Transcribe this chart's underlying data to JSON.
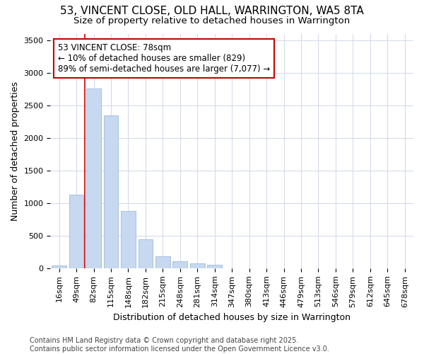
{
  "title_line1": "53, VINCENT CLOSE, OLD HALL, WARRINGTON, WA5 8TA",
  "title_line2": "Size of property relative to detached houses in Warrington",
  "xlabel": "Distribution of detached houses by size in Warrington",
  "ylabel": "Number of detached properties",
  "categories": [
    "16sqm",
    "49sqm",
    "82sqm",
    "115sqm",
    "148sqm",
    "182sqm",
    "215sqm",
    "248sqm",
    "281sqm",
    "314sqm",
    "347sqm",
    "380sqm",
    "413sqm",
    "446sqm",
    "479sqm",
    "513sqm",
    "546sqm",
    "579sqm",
    "612sqm",
    "645sqm",
    "678sqm"
  ],
  "values": [
    45,
    1130,
    2760,
    2340,
    880,
    440,
    185,
    105,
    75,
    50,
    0,
    0,
    0,
    0,
    0,
    0,
    0,
    0,
    0,
    0,
    0
  ],
  "bar_color": "#c6d9f0",
  "bar_edge_color": "#a0b8d8",
  "vline_color": "#cc0000",
  "vline_x_index": 2,
  "annotation_text": "53 VINCENT CLOSE: 78sqm\n← 10% of detached houses are smaller (829)\n89% of semi-detached houses are larger (7,077) →",
  "annotation_box_facecolor": "#ffffff",
  "annotation_box_edgecolor": "#cc0000",
  "ylim": [
    0,
    3600
  ],
  "yticks": [
    0,
    500,
    1000,
    1500,
    2000,
    2500,
    3000,
    3500
  ],
  "bg_color": "#ffffff",
  "plot_bg_color": "#ffffff",
  "grid_color": "#d0d8e8",
  "title_fontsize": 11,
  "subtitle_fontsize": 9.5,
  "axis_label_fontsize": 9,
  "tick_fontsize": 8,
  "annotation_fontsize": 8.5,
  "footer_fontsize": 7,
  "footer_line1": "Contains HM Land Registry data © Crown copyright and database right 2025.",
  "footer_line2": "Contains public sector information licensed under the Open Government Licence v3.0."
}
